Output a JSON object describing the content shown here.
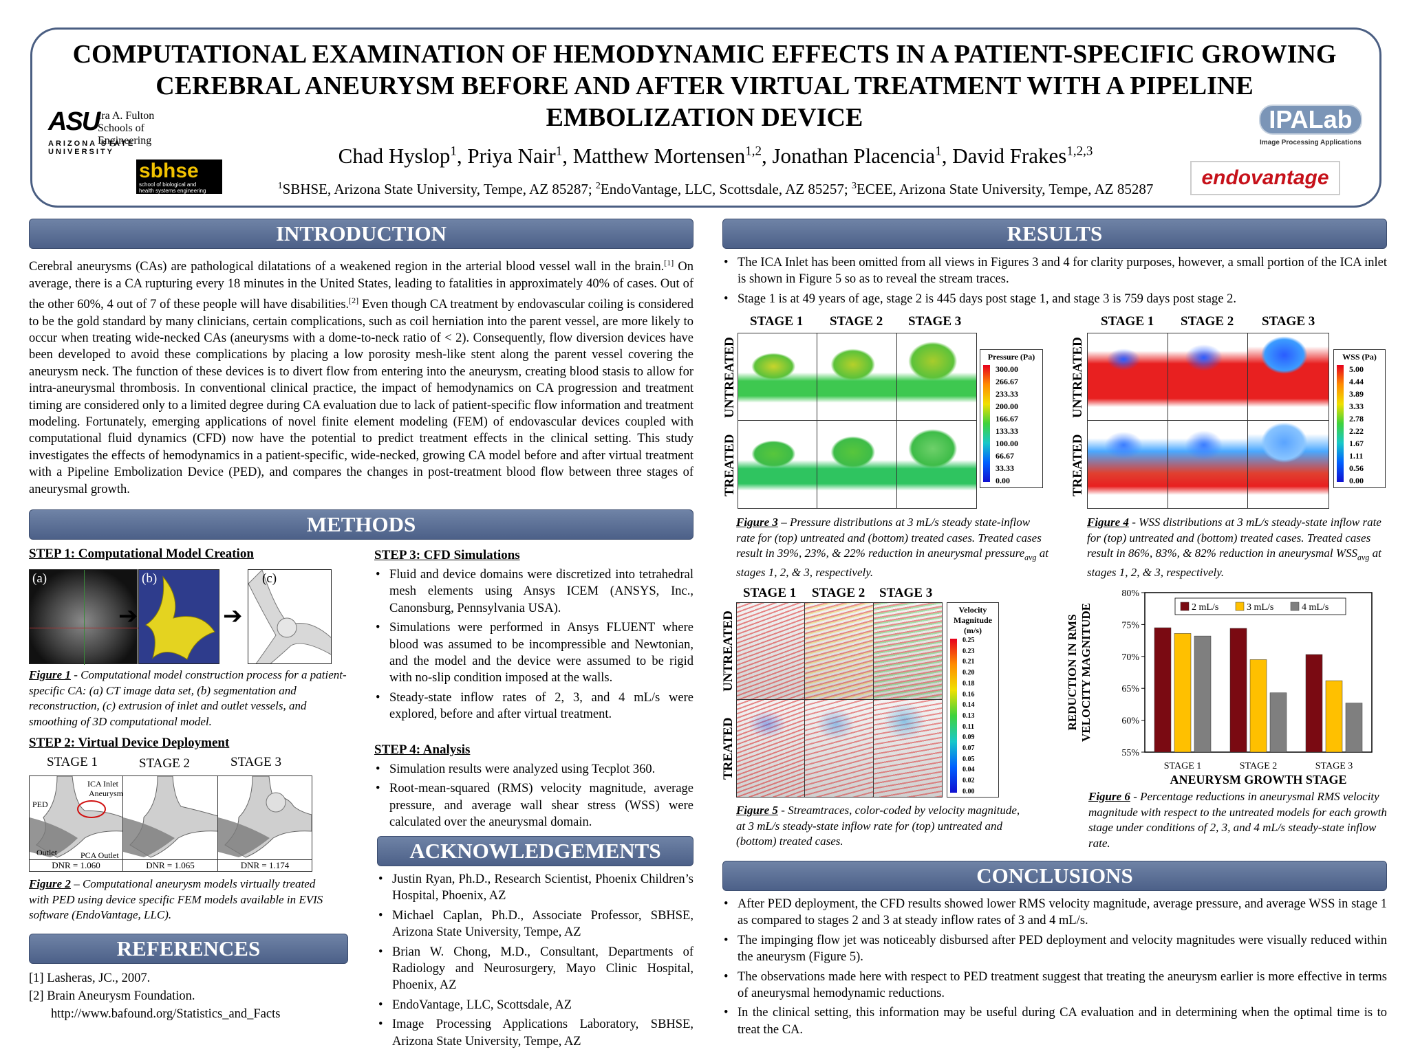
{
  "title": "COMPUTATIONAL EXAMINATION OF HEMODYNAMIC EFFECTS IN A PATIENT-SPECIFIC GROWING CEREBRAL ANEURYSM BEFORE AND AFTER VIRTUAL TREATMENT WITH A PIPELINE EMBOLIZATION DEVICE",
  "authors": {
    "a1": "Chad Hyslop",
    "s1": "1",
    "a2": ", Priya Nair",
    "s2": "1",
    "a3": ", Matthew Mortensen",
    "s3": "1,2",
    "a4": ", Jonathan Placencia",
    "s4": "1",
    "a5": ", David Frakes",
    "s5": "1,2,3"
  },
  "affiliations": {
    "n1": "1",
    "t1": "SBHSE, Arizona State University, Tempe, AZ 85287;  ",
    "n2": "2",
    "t2": "EndoVantage, LLC, Scottsdale, AZ 85257;  ",
    "n3": "3",
    "t3": "ECEE, Arizona State University, Tempe, AZ 85287"
  },
  "logos": {
    "asu_mark": "ASU",
    "asu_line1": "Ira A. Fulton",
    "asu_line2": "Schools of Engineering",
    "asu_line3": "ARIZONA STATE UNIVERSITY",
    "sbhse": "sbhse",
    "sbhse_sub1": "school of biological and",
    "sbhse_sub2": "health systems engineering",
    "ipalab": "IPALab",
    "ipalab_sub": "Image Processing Applications",
    "endovantage": "endovantage"
  },
  "sections": {
    "introduction": "INTRODUCTION",
    "methods": "METHODS",
    "references": "REFERENCES",
    "results": "RESULTS",
    "acknowledgements": "ACKNOWLEDGEMENTS",
    "conclusions": "CONCLUSIONS"
  },
  "intro": {
    "p1": "Cerebral aneurysms (CAs) are pathological dilatations of a weakened region in the arterial blood vessel wall in the brain.",
    "r1": "[1]",
    "p2": " On average, there is a CA rupturing every 18 minutes in the United States, leading to fatalities in approximately 40% of cases. Out of the other 60%, 4 out of 7 of these people will have disabilities.",
    "r2": "[2]",
    "p3": " Even though CA treatment by endovascular coiling is considered to be the gold standard by many clinicians, certain complications, such as coil herniation into the parent vessel, are more likely to occur when treating wide-necked CAs (aneurysms with a dome-to-neck ratio of < 2). Consequently, flow diversion devices have been developed to avoid these complications by placing a low porosity mesh-like stent along the parent vessel covering the aneurysm neck. The function of these devices is to divert flow from entering into the aneurysm, creating blood stasis to allow for intra-aneurysmal thrombosis. In conventional clinical practice, the impact of hemodynamics on CA progression and treatment timing are considered only to a limited degree during CA evaluation due to lack of patient-specific flow information and treatment modeling. Fortunately, emerging applications of novel finite element modeling (FEM) of endovascular devices coupled with computational fluid dynamics (CFD) now have the potential to predict treatment effects in the clinical setting. This study investigates the effects of hemodynamics in a patient-specific, wide-necked, growing CA model before and after virtual treatment with a Pipeline Embolization Device (PED), and compares the changes in post-treatment blood flow between three stages of aneurysmal growth."
  },
  "step1": {
    "heading": "STEP 1:  Computational Model Creation",
    "a": "(a)",
    "b": "(b)",
    "c": "(c)",
    "cap_label": "Figure 1",
    "cap_text": " - Computational model construction process for a patient-specific CA: (a) CT image data set, (b) segmentation and reconstruction, (c) extrusion of inlet and outlet vessels, and smoothing of 3D computational model."
  },
  "step2": {
    "heading": "STEP 2:  Virtual Device Deployment",
    "stage1": "STAGE 1",
    "stage2": "STAGE 2",
    "stage3": "STAGE 3",
    "ica": "ICA Inlet",
    "aneurysm": "Aneurysm",
    "ped": "PED",
    "outlet": "Outlet",
    "pca": "PCA Outlet",
    "dnr1": "DNR = 1.060",
    "dnr2": "DNR = 1.065",
    "dnr3": "DNR = 1.174",
    "cap_label": "Figure 2",
    "cap_text": " – Computational aneurysm models virtually treated with PED using device specific FEM models available in EVIS software (EndoVantage, LLC)."
  },
  "step3": {
    "heading": "STEP 3:  CFD Simulations",
    "items": [
      "Fluid and device domains were discretized into tetrahedral mesh elements using Ansys ICEM (ANSYS, Inc., Canonsburg, Pennsylvania USA).",
      "Simulations were performed in Ansys FLUENT where blood was assumed to be incompressible and Newtonian, and the model and the device were assumed to be rigid with no-slip condition imposed at the walls.",
      "Steady-state inflow rates of 2, 3, and 4 mL/s were explored, before and after virtual treatment."
    ]
  },
  "step4": {
    "heading": "STEP 4:  Analysis",
    "items": [
      "Simulation results were analyzed using Tecplot 360.",
      "Root-mean-squared (RMS) velocity magnitude, average pressure, and average wall shear stress (WSS) were calculated over the aneurysmal domain."
    ]
  },
  "references": [
    "[1] Lasheras, JC., 2007.",
    "[2] Brain Aneurysm Foundation.",
    "http://www.bafound.org/Statistics_and_Facts"
  ],
  "acknowledgements": [
    "Justin Ryan, Ph.D., Research Scientist, Phoenix Children’s Hospital, Phoenix, AZ",
    "Michael Caplan, Ph.D., Associate Professor, SBHSE, Arizona State University, Tempe, AZ",
    "Brian W. Chong, M.D., Consultant, Departments of Radiology and Neurosurgery, Mayo Clinic Hospital, Phoenix, AZ",
    "EndoVantage, LLC, Scottsdale, AZ",
    "Image Processing Applications Laboratory, SBHSE, Arizona State University, Tempe, AZ"
  ],
  "results": {
    "items": [
      "The ICA Inlet has been omitted from all views in Figures 3 and 4 for clarity purposes, however, a small portion of the ICA inlet is shown in Figure 5 so as to reveal the stream traces.",
      "Stage 1 is at 49 years of age, stage 2 is 445 days post stage 1, and stage 3 is 759 days post stage 2."
    ]
  },
  "fig3": {
    "stage1": "STAGE 1",
    "stage2": "STAGE 2",
    "stage3": "STAGE 3",
    "untreated": "UNTREATED",
    "treated": "TREATED",
    "legend_title": "Pressure (Pa)",
    "legend_values": [
      "300.00",
      "266.67",
      "233.33",
      "200.00",
      "166.67",
      "133.33",
      "100.00",
      "66.67",
      "33.33",
      "0.00"
    ],
    "cap_label": "Figure 3",
    "cap_text": " – Pressure distributions at 3 mL/s steady state-inflow rate for (top) untreated and (bottom) treated cases. Treated cases result in 39%, 23%, & 22% reduction in aneurysmal pressure",
    "cap_sub": "avg",
    "cap_end": " at stages 1, 2, & 3, respectively."
  },
  "fig4": {
    "stage1": "STAGE 1",
    "stage2": "STAGE 2",
    "stage3": "STAGE 3",
    "untreated": "UNTREATED",
    "treated": "TREATED",
    "legend_title": "WSS (Pa)",
    "legend_values": [
      "5.00",
      "4.44",
      "3.89",
      "3.33",
      "2.78",
      "2.22",
      "1.67",
      "1.11",
      "0.56",
      "0.00"
    ],
    "cap_label": "Figure 4",
    "cap_text": " - WSS distributions at 3 mL/s steady-state inflow rate for (top) untreated and (bottom) treated cases. Treated cases result in 86%, 83%, & 82% reduction in aneurysmal WSS",
    "cap_sub": "avg",
    "cap_end": " at stages 1, 2, & 3, respectively."
  },
  "fig5": {
    "stage1": "STAGE 1",
    "stage2": "STAGE 2",
    "stage3": "STAGE 3",
    "untreated": "UNTREATED",
    "treated": "TREATED",
    "legend_title1": "Velocity",
    "legend_title2": "Magnitude",
    "legend_title3": "(m/s)",
    "legend_values": [
      "0.25",
      "0.23",
      "0.21",
      "0.20",
      "0.18",
      "0.16",
      "0.14",
      "0.13",
      "0.11",
      "0.09",
      "0.07",
      "0.05",
      "0.04",
      "0.02",
      "0.00"
    ],
    "cap_label": "Figure 5",
    "cap_text": " - Streamtraces, color-coded by velocity magnitude, at 3 mL/s steady-state inflow rate for (top) untreated and (bottom) treated cases."
  },
  "chart_data": {
    "type": "bar",
    "categories": [
      "STAGE 1",
      "STAGE 2",
      "STAGE 3"
    ],
    "series": [
      {
        "name": "2 mL/s",
        "values": [
          74.5,
          74.4,
          70.3
        ],
        "color": "#7a0a12"
      },
      {
        "name": "3 mL/s",
        "values": [
          73.6,
          69.5,
          66.2
        ],
        "color": "#ffc000"
      },
      {
        "name": "4 mL/s",
        "values": [
          73.2,
          64.3,
          62.7
        ],
        "color": "#7f7f7f"
      }
    ],
    "ylim": [
      55,
      80
    ],
    "yticks": [
      "55%",
      "60%",
      "65%",
      "70%",
      "75%",
      "80%"
    ],
    "xlabel": "ANEURYSM GROWTH STAGE",
    "ylabel1": "REDUCTION IN RMS",
    "ylabel2": "VELOCITY MAGNITUDE",
    "legend_placement": "top"
  },
  "fig6": {
    "cap_label": "Figure 6",
    "cap_text": " - Percentage reductions in aneurysmal RMS velocity magnitude with respect to the untreated models for each growth stage under conditions of 2, 3, and 4 mL/s steady-state inflow rate."
  },
  "conclusions": [
    "After PED deployment, the CFD results showed lower RMS velocity magnitude, average pressure, and average WSS in stage 1 as compared to stages 2 and 3 at steady inflow rates of 3 and 4 mL/s.",
    "The impinging flow jet was noticeably disbursed after PED deployment and velocity magnitudes were visually reduced within the aneurysm (Figure 5).",
    "The observations made here with respect to PED treatment suggest that treating the aneurysm earlier is more effective in terms of aneurysmal hemodynamic reductions.",
    "In the clinical setting, this information may be useful during CA evaluation and in determining when the optimal time is to treat the CA."
  ]
}
